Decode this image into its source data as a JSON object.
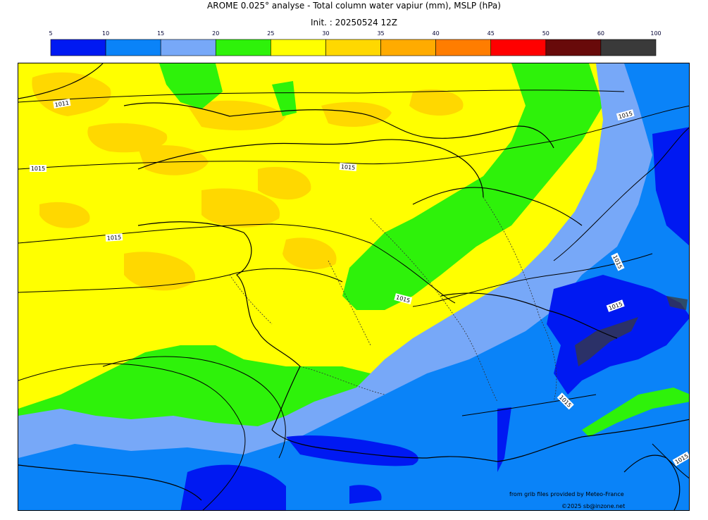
{
  "title": "AROME 0.025° analyse - Total column water vapiur (mm), MSLP (hPa)",
  "subtitle": "Init. : 20250524 12Z",
  "colorbar": {
    "ticks": [
      "5",
      "10",
      "15",
      "20",
      "25",
      "30",
      "35",
      "40",
      "45",
      "50",
      "60",
      "100"
    ],
    "colors": [
      "#0019f2",
      "#0a83f8",
      "#77a8f8",
      "#2ef20a",
      "#ffff00",
      "#ffd800",
      "#ffab00",
      "#ff7d00",
      "#ff0000",
      "#680a0a",
      "#3a3a3a"
    ]
  },
  "isobar_labels": [
    "1011",
    "1015",
    "1015",
    "1015",
    "1015",
    "1015",
    "1015",
    "1015",
    "1015",
    "1015"
  ],
  "credits": {
    "source": "from grib files provided by Meteo-France",
    "copyright": "©2025 sb@inzone.net"
  }
}
